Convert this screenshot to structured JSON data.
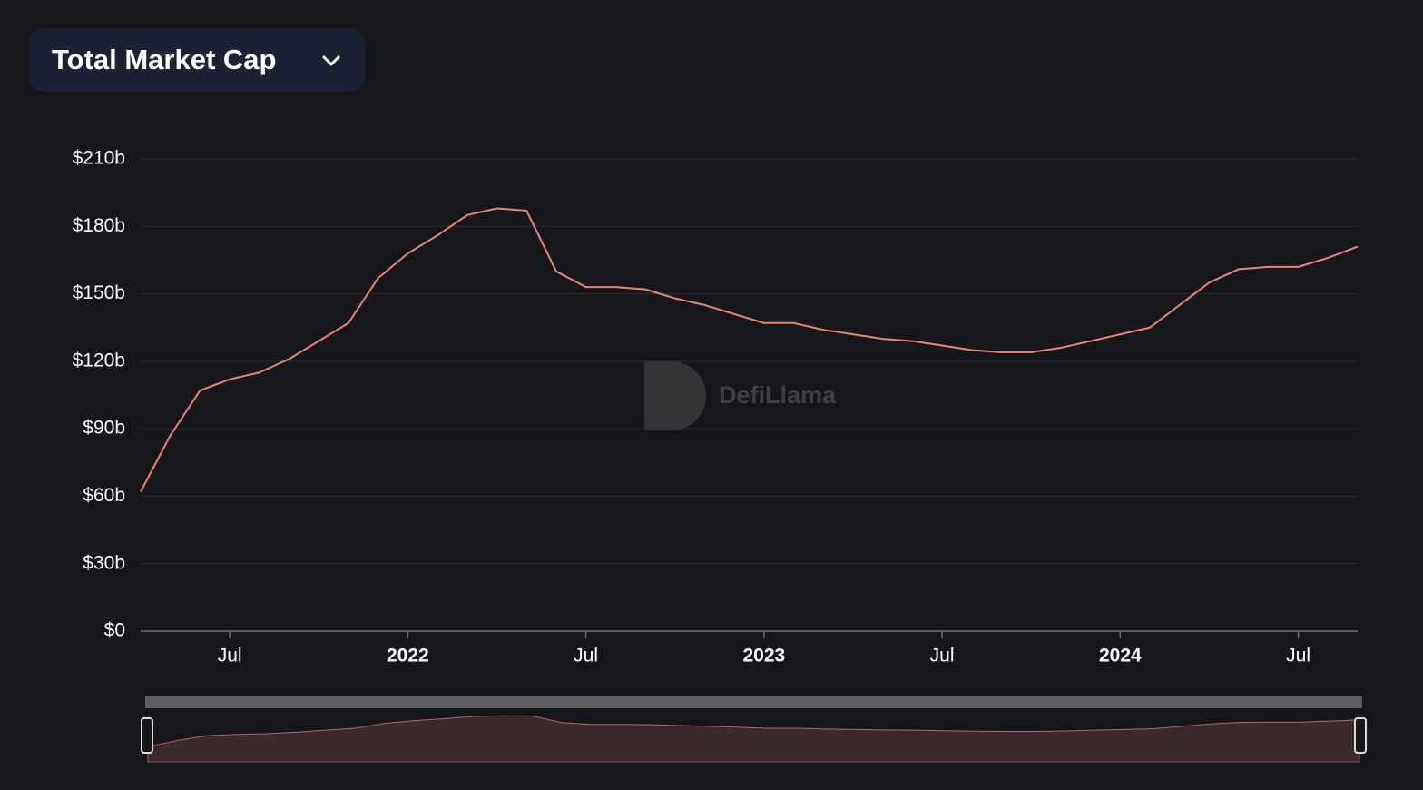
{
  "chart_data": {
    "type": "line",
    "selector": "Total Market Cap",
    "watermark": "DefiLlama",
    "x": [
      "2021-04",
      "2021-05",
      "2021-06",
      "2021-07",
      "2021-08",
      "2021-09",
      "2021-10",
      "2021-11",
      "2021-12",
      "2022-01",
      "2022-02",
      "2022-03",
      "2022-04",
      "2022-05",
      "2022-06",
      "2022-07",
      "2022-08",
      "2022-09",
      "2022-10",
      "2022-11",
      "2022-12",
      "2023-01",
      "2023-02",
      "2023-03",
      "2023-04",
      "2023-05",
      "2023-06",
      "2023-07",
      "2023-08",
      "2023-09",
      "2023-10",
      "2023-11",
      "2023-12",
      "2024-01",
      "2024-02",
      "2024-03",
      "2024-04",
      "2024-05",
      "2024-06",
      "2024-07",
      "2024-08",
      "2024-09"
    ],
    "series": [
      {
        "color": "#e8837a",
        "values": [
          62,
          87,
          107,
          112,
          115,
          121,
          129,
          137,
          157,
          168,
          176,
          185,
          188,
          187,
          160,
          153,
          153,
          152,
          148,
          145,
          141,
          137,
          137,
          134,
          132,
          130,
          129,
          127,
          125,
          124,
          124,
          126,
          129,
          132,
          135,
          145,
          155,
          161,
          162,
          162,
          166,
          171
        ]
      }
    ],
    "xlim": [
      "2021-04",
      "2024-09"
    ],
    "xticks": [
      {
        "value": "2021-07",
        "label": "Jul"
      },
      {
        "value": "2022-01",
        "label": "2022"
      },
      {
        "value": "2022-07",
        "label": "Jul"
      },
      {
        "value": "2023-01",
        "label": "2023"
      },
      {
        "value": "2023-07",
        "label": "Jul"
      },
      {
        "value": "2024-01",
        "label": "2024"
      },
      {
        "value": "2024-07",
        "label": "Jul"
      }
    ],
    "ylim": [
      0,
      210
    ],
    "yticks": [
      {
        "value": 0,
        "label": "$0"
      },
      {
        "value": 30,
        "label": "$30b"
      },
      {
        "value": 60,
        "label": "$60b"
      },
      {
        "value": 90,
        "label": "$90b"
      },
      {
        "value": 120,
        "label": "$120b"
      },
      {
        "value": 150,
        "label": "$150b"
      },
      {
        "value": 180,
        "label": "$180b"
      },
      {
        "value": 210,
        "label": "$210b"
      }
    ],
    "grid": true
  }
}
